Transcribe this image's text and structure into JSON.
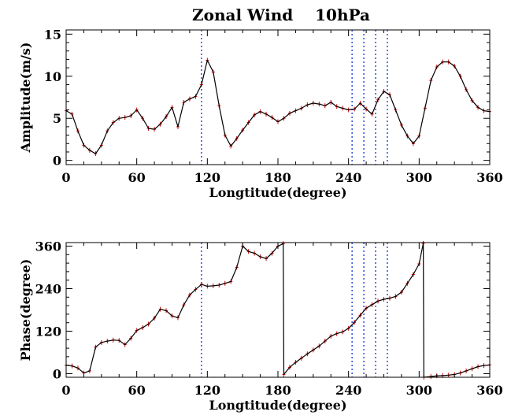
{
  "chart_data": [
    {
      "type": "line",
      "title": "Zonal Wind    10hPa",
      "xlabel": "Longtitude(degree)",
      "ylabel": "Amplitude(m/s)",
      "xlim": [
        0,
        360
      ],
      "ylim": [
        -0.5,
        15.5
      ],
      "xticks": [
        "0",
        "60",
        "120",
        "180",
        "240",
        "300",
        "360"
      ],
      "yticks": [
        "0",
        "5",
        "10",
        "15"
      ],
      "xtick_values": [
        0,
        60,
        120,
        180,
        240,
        300,
        360
      ],
      "ytick_values": [
        0,
        5,
        10,
        15
      ],
      "vlines": [
        115,
        243,
        253,
        263,
        273
      ],
      "series": [
        {
          "color": "#000000",
          "error_color": "#cc0000",
          "x": [
            0,
            5,
            10,
            15,
            20,
            25,
            30,
            35,
            40,
            45,
            50,
            55,
            60,
            65,
            70,
            75,
            80,
            85,
            90,
            95,
            100,
            105,
            110,
            115,
            120,
            125,
            130,
            135,
            140,
            145,
            150,
            155,
            160,
            165,
            170,
            175,
            180,
            185,
            190,
            195,
            200,
            205,
            210,
            215,
            220,
            225,
            230,
            235,
            240,
            245,
            250,
            255,
            260,
            265,
            270,
            275,
            280,
            285,
            290,
            295,
            300,
            305,
            310,
            315,
            320,
            325,
            330,
            335,
            340,
            345,
            350,
            355,
            360
          ],
          "values": [
            5.9,
            5.5,
            3.5,
            1.8,
            1.2,
            0.8,
            1.8,
            3.5,
            4.5,
            5.0,
            5.1,
            5.3,
            6.0,
            5.0,
            3.8,
            3.7,
            4.3,
            5.2,
            6.3,
            4.0,
            6.9,
            7.3,
            7.6,
            9.0,
            11.9,
            10.5,
            6.5,
            3.0,
            1.7,
            2.6,
            3.6,
            4.5,
            5.4,
            5.8,
            5.5,
            5.1,
            4.6,
            5.0,
            5.6,
            5.9,
            6.2,
            6.6,
            6.8,
            6.7,
            6.5,
            6.9,
            6.4,
            6.2,
            6.0,
            6.1,
            6.8,
            6.1,
            5.5,
            7.2,
            8.2,
            7.8,
            6.0,
            4.2,
            2.9,
            2.0,
            2.9,
            6.2,
            9.5,
            11.1,
            11.7,
            11.7,
            11.2,
            10.0,
            8.4,
            7.1,
            6.3,
            5.9,
            5.8
          ]
        }
      ]
    },
    {
      "type": "line",
      "title": "",
      "xlabel": "Longtitude(degree)",
      "ylabel": "Phase(degree)",
      "xlim": [
        0,
        360
      ],
      "ylim": [
        -10,
        370
      ],
      "xticks": [
        "0",
        "60",
        "120",
        "180",
        "240",
        "300",
        "360"
      ],
      "yticks": [
        "0",
        "120",
        "240",
        "360"
      ],
      "xtick_values": [
        0,
        60,
        120,
        180,
        240,
        300,
        360
      ],
      "ytick_values": [
        0,
        120,
        240,
        360
      ],
      "vlines": [
        115,
        243,
        253,
        263,
        273
      ],
      "series": [
        {
          "color": "#000000",
          "error_color": "#cc0000",
          "x": [
            0,
            5,
            10,
            15,
            20,
            25,
            30,
            35,
            40,
            45,
            50,
            55,
            60,
            65,
            70,
            75,
            80,
            85,
            90,
            95,
            100,
            105,
            110,
            115,
            120,
            125,
            130,
            135,
            140,
            145,
            150,
            155,
            160,
            165,
            170,
            175,
            180,
            184.5,
            185,
            190,
            195,
            200,
            205,
            210,
            215,
            220,
            225,
            230,
            235,
            240,
            245,
            250,
            255,
            260,
            265,
            270,
            275,
            280,
            285,
            290,
            295,
            300,
            303.5,
            304,
            310,
            315,
            320,
            325,
            330,
            335,
            340,
            345,
            350,
            355,
            360
          ],
          "values": [
            24,
            22,
            16,
            2,
            8,
            75,
            88,
            92,
            95,
            94,
            82,
            100,
            122,
            130,
            140,
            157,
            182,
            178,
            163,
            158,
            194,
            222,
            238,
            252,
            247,
            248,
            250,
            255,
            260,
            300,
            360,
            345,
            340,
            330,
            325,
            340,
            360,
            367,
            -2,
            18,
            32,
            44,
            56,
            67,
            78,
            92,
            106,
            113,
            118,
            128,
            145,
            165,
            185,
            195,
            205,
            210,
            213,
            218,
            230,
            255,
            280,
            310,
            368,
            -10,
            -8,
            -6,
            -5,
            -4,
            -2,
            2,
            8,
            14,
            20,
            23,
            25
          ]
        }
      ]
    }
  ]
}
